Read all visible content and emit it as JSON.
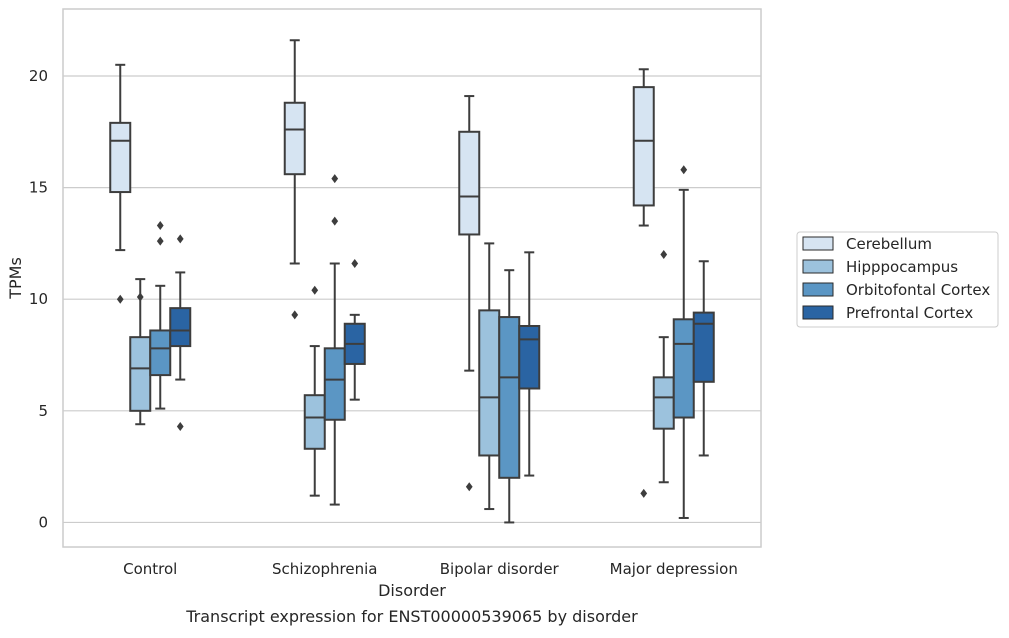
{
  "chart_data": {
    "type": "box",
    "title": "",
    "caption": "Transcript expression for ENST00000539065 by disorder",
    "xlabel": "Disorder",
    "ylabel": "TPMs",
    "ylim": [
      -1.1,
      23.0
    ],
    "yticks": [
      0,
      5,
      10,
      15,
      20
    ],
    "grid": "horizontal",
    "legend_position": "right",
    "categories": [
      "Control",
      "Schizophrenia",
      "Bipolar disorder",
      "Major depression"
    ],
    "series": [
      {
        "name": "Cerebellum",
        "color": "#d6e4f2",
        "boxes": [
          {
            "whisker_low": 12.2,
            "q1": 14.8,
            "median": 17.1,
            "q3": 17.9,
            "whisker_high": 20.5,
            "outliers": [
              10.0
            ]
          },
          {
            "whisker_low": 11.6,
            "q1": 15.6,
            "median": 17.6,
            "q3": 18.8,
            "whisker_high": 21.6,
            "outliers": [
              9.3
            ]
          },
          {
            "whisker_low": 6.8,
            "q1": 12.9,
            "median": 14.6,
            "q3": 17.5,
            "whisker_high": 19.1,
            "outliers": [
              1.6
            ]
          },
          {
            "whisker_low": 13.3,
            "q1": 14.2,
            "median": 17.1,
            "q3": 19.5,
            "whisker_high": 20.3,
            "outliers": [
              1.3
            ]
          }
        ]
      },
      {
        "name": "Hipppocampus",
        "color": "#9cc2dd",
        "boxes": [
          {
            "whisker_low": 4.4,
            "q1": 5.0,
            "median": 6.9,
            "q3": 8.3,
            "whisker_high": 10.9,
            "outliers": [
              10.1
            ]
          },
          {
            "whisker_low": 1.2,
            "q1": 3.3,
            "median": 4.7,
            "q3": 5.7,
            "whisker_high": 7.9,
            "outliers": [
              10.4
            ]
          },
          {
            "whisker_low": 0.6,
            "q1": 3.0,
            "median": 5.6,
            "q3": 9.5,
            "whisker_high": 12.5,
            "outliers": []
          },
          {
            "whisker_low": 1.8,
            "q1": 4.2,
            "median": 5.6,
            "q3": 6.5,
            "whisker_high": 8.3,
            "outliers": [
              12.0
            ]
          }
        ]
      },
      {
        "name": "Orbitofontal Cortex",
        "color": "#5b96c4",
        "boxes": [
          {
            "whisker_low": 5.1,
            "q1": 6.6,
            "median": 7.8,
            "q3": 8.6,
            "whisker_high": 10.6,
            "outliers": [
              12.6,
              13.3
            ]
          },
          {
            "whisker_low": 0.8,
            "q1": 4.6,
            "median": 6.4,
            "q3": 7.8,
            "whisker_high": 11.6,
            "outliers": [
              13.5,
              15.4
            ]
          },
          {
            "whisker_low": 0.0,
            "q1": 2.0,
            "median": 6.5,
            "q3": 9.2,
            "whisker_high": 11.3,
            "outliers": []
          },
          {
            "whisker_low": 0.2,
            "q1": 4.7,
            "median": 8.0,
            "q3": 9.1,
            "whisker_high": 14.9,
            "outliers": [
              15.8
            ]
          }
        ]
      },
      {
        "name": "Prefrontal Cortex",
        "color": "#2a64a3",
        "boxes": [
          {
            "whisker_low": 6.4,
            "q1": 7.9,
            "median": 8.6,
            "q3": 9.6,
            "whisker_high": 11.2,
            "outliers": [
              4.3,
              12.7
            ]
          },
          {
            "whisker_low": 5.5,
            "q1": 7.1,
            "median": 8.0,
            "q3": 8.9,
            "whisker_high": 9.3,
            "outliers": [
              11.6
            ]
          },
          {
            "whisker_low": 2.1,
            "q1": 6.0,
            "median": 8.2,
            "q3": 8.8,
            "whisker_high": 12.1,
            "outliers": []
          },
          {
            "whisker_low": 3.0,
            "q1": 6.3,
            "median": 8.9,
            "q3": 9.4,
            "whisker_high": 11.7,
            "outliers": []
          }
        ]
      }
    ]
  }
}
